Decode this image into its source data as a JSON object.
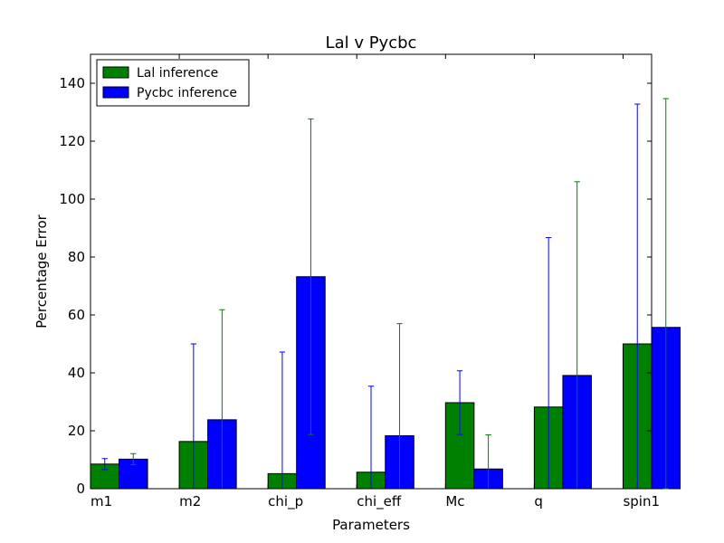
{
  "chart_data": {
    "type": "bar",
    "title": "Lal v Pycbc",
    "xlabel": "Parameters",
    "ylabel": "Percentage Error",
    "categories": [
      "m1",
      "m2",
      "chi_p",
      "chi_eff",
      "Mc",
      "q",
      "spin1"
    ],
    "ylim": [
      0,
      150
    ],
    "yticks": [
      0,
      20,
      40,
      60,
      80,
      100,
      120,
      140
    ],
    "legend_position": "top-left",
    "series": [
      {
        "name": "Lal inference",
        "color": "#008000",
        "values": [
          8.5,
          16.3,
          5.2,
          5.7,
          29.7,
          28.2,
          50.0
        ],
        "errors": [
          1.9,
          33.7,
          42.0,
          29.7,
          11.0,
          58.5,
          82.8
        ],
        "error_color": "#0000ff"
      },
      {
        "name": "Pycbc inference",
        "color": "#0000ff",
        "values": [
          10.2,
          23.8,
          73.2,
          18.3,
          6.8,
          39.1,
          55.7
        ],
        "errors": [
          1.9,
          38.0,
          54.5,
          38.7,
          11.8,
          66.9,
          79.0
        ],
        "error_color": "#008000"
      }
    ],
    "grid": false
  }
}
